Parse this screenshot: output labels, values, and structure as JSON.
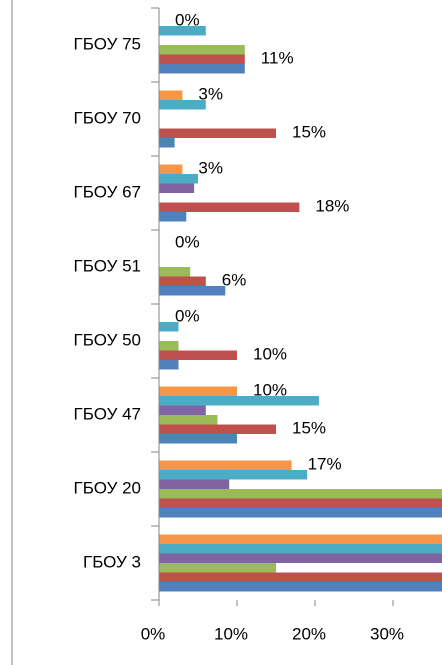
{
  "chart_data": {
    "type": "bar",
    "orientation": "horizontal",
    "categories": [
      "ГБОУ 3",
      "ГБОУ 20",
      "ГБОУ 47",
      "ГБОУ 50",
      "ГБОУ 51",
      "ГБОУ 67",
      "ГБОУ 70",
      "ГБОУ 75"
    ],
    "series": [
      {
        "color": "#4f81bd",
        "values": [
          40,
          40,
          10,
          2.5,
          8.5,
          3.5,
          2,
          11
        ]
      },
      {
        "color": "#c0504d",
        "values": [
          40,
          40,
          15,
          10,
          6,
          18,
          15,
          11
        ],
        "value_labels": [
          null,
          null,
          "15%",
          "10%",
          "6%",
          "18%",
          "15%",
          "11%"
        ]
      },
      {
        "color": "#9bbb59",
        "values": [
          15,
          40,
          7.5,
          2.5,
          4,
          0,
          0,
          11
        ]
      },
      {
        "color": "#8064a2",
        "values": [
          40,
          9,
          6,
          0,
          0,
          4.5,
          0,
          0
        ]
      },
      {
        "color": "#4bacc6",
        "values": [
          40,
          19,
          20.5,
          2.5,
          0,
          5,
          6,
          6
        ]
      },
      {
        "color": "#f79646",
        "values": [
          40,
          17,
          10,
          0,
          0,
          3,
          3,
          0
        ],
        "value_labels": [
          null,
          "17%",
          "10%",
          "0%",
          "0%",
          "3%",
          "3%",
          "0%"
        ]
      }
    ],
    "xlim": [
      0,
      36
    ],
    "xticks": [
      {
        "value": 0,
        "label": "0%"
      },
      {
        "value": 10,
        "label": "10%"
      },
      {
        "value": 20,
        "label": "20%"
      },
      {
        "value": 30,
        "label": "30%"
      }
    ]
  }
}
